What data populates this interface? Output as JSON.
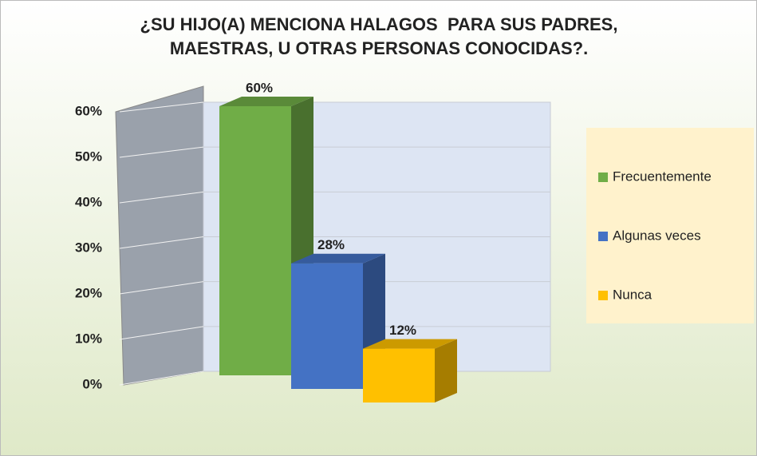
{
  "chart_data": {
    "type": "bar3d",
    "title": "¿SU HIJO(A) MENCIONA HALAGOS  PARA SUS PADRES, MAESTRAS, U OTRAS PERSONAS CONOCIDAS?.",
    "categories": [
      "Frecuentemente",
      "Algunas veces",
      "Nunca"
    ],
    "values": [
      60,
      28,
      12
    ],
    "value_labels": [
      "60%",
      "28%",
      "12%"
    ],
    "colors": [
      "#70ad47",
      "#4472c4",
      "#ffc000"
    ],
    "ylim": [
      0,
      60
    ],
    "yticks": [
      {
        "value": 0,
        "label": "0%"
      },
      {
        "value": 10,
        "label": "10%"
      },
      {
        "value": 20,
        "label": "20%"
      },
      {
        "value": 30,
        "label": "30%"
      },
      {
        "value": 40,
        "label": "40%"
      },
      {
        "value": 50,
        "label": "50%"
      },
      {
        "value": 60,
        "label": "60%"
      }
    ],
    "grid": true,
    "legend": "right"
  }
}
